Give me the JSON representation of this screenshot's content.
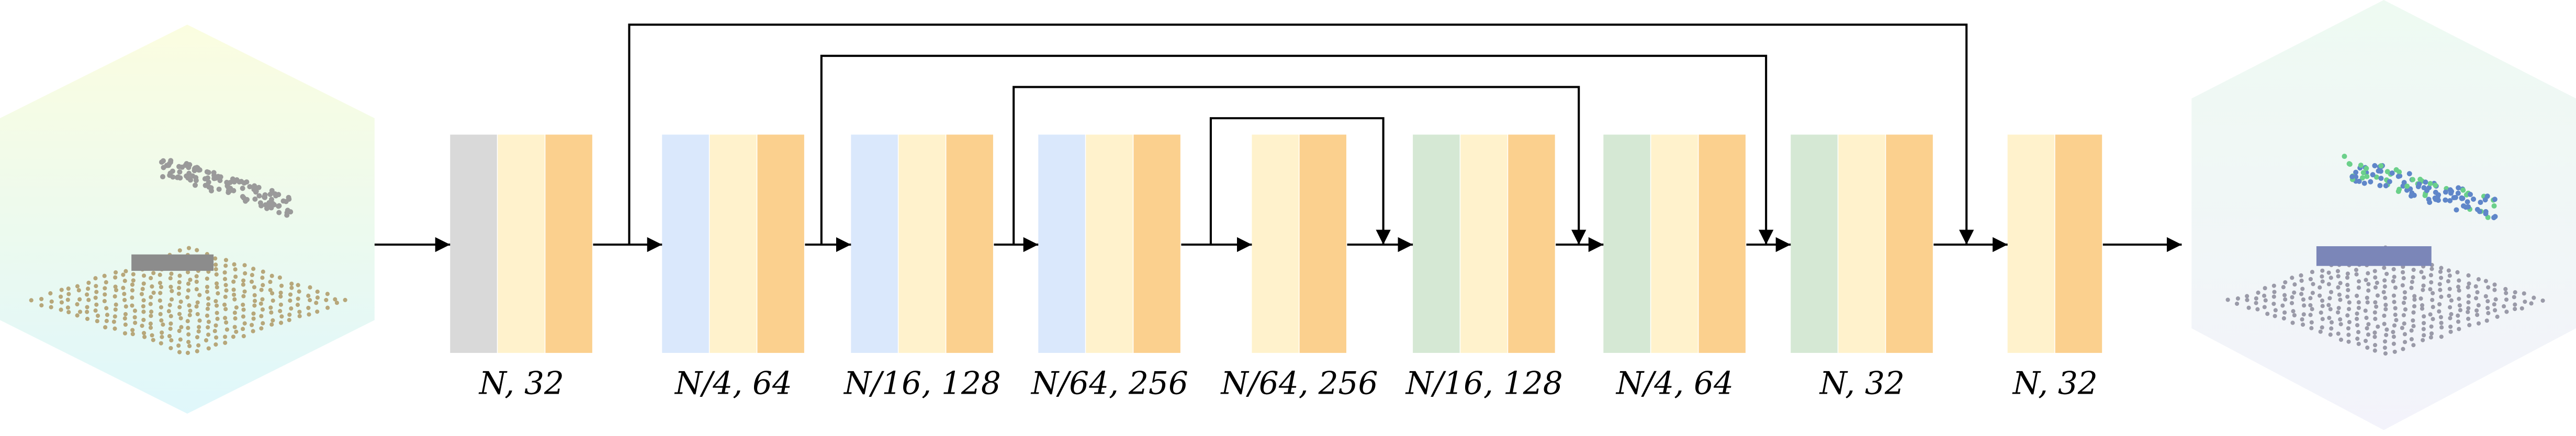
{
  "blocks": [
    {
      "label": "N, 32"
    },
    {
      "label": "N/4, 64"
    },
    {
      "label": "N/16, 128"
    },
    {
      "label": "N/64, 256"
    },
    {
      "label": "N/64, 256"
    },
    {
      "label": "N/16, 128"
    },
    {
      "label": "N/4, 64"
    },
    {
      "label": "N, 32"
    },
    {
      "label": "N, 32"
    }
  ]
}
